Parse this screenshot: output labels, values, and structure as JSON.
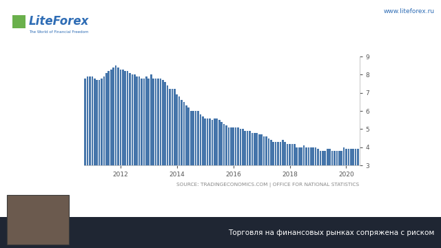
{
  "chart_data": {
    "type": "bar",
    "categories": [
      null,
      null,
      null,
      null,
      null,
      null,
      null,
      null,
      null,
      null,
      null,
      null,
      null,
      null,
      null,
      "2012",
      null,
      null,
      null,
      null,
      null,
      null,
      null,
      null,
      null,
      null,
      null,
      null,
      null,
      null,
      null,
      null,
      null,
      null,
      null,
      null,
      null,
      null,
      null,
      "2014",
      null,
      null,
      null,
      null,
      null,
      null,
      null,
      null,
      null,
      null,
      null,
      null,
      null,
      null,
      null,
      null,
      null,
      null,
      null,
      null,
      null,
      null,
      null,
      "2016",
      null,
      null,
      null,
      null,
      null,
      null,
      null,
      null,
      null,
      null,
      null,
      null,
      null,
      null,
      null,
      null,
      null,
      null,
      null,
      null,
      null,
      null,
      null,
      "2018",
      null,
      null,
      null,
      null,
      null,
      null,
      null,
      null,
      null,
      null,
      null,
      null,
      null,
      null,
      null,
      null,
      null,
      null,
      null,
      null,
      null,
      null,
      null,
      "2020",
      null,
      null,
      null,
      null,
      null
    ],
    "values": [
      7.8,
      7.9,
      7.9,
      7.9,
      7.8,
      7.7,
      7.7,
      7.8,
      7.9,
      8.1,
      8.2,
      8.3,
      8.4,
      8.5,
      8.4,
      8.3,
      8.3,
      8.2,
      8.2,
      8.1,
      8.0,
      8.0,
      7.9,
      7.9,
      7.8,
      7.8,
      7.9,
      7.8,
      8.0,
      7.8,
      7.8,
      7.8,
      7.8,
      7.7,
      7.6,
      7.4,
      7.2,
      7.2,
      7.2,
      6.9,
      6.8,
      6.6,
      6.5,
      6.3,
      6.2,
      6.0,
      6.0,
      6.0,
      6.0,
      5.8,
      5.7,
      5.6,
      5.6,
      5.6,
      5.5,
      5.6,
      5.6,
      5.5,
      5.4,
      5.3,
      5.2,
      5.1,
      5.1,
      5.1,
      5.1,
      5.1,
      5.0,
      5.0,
      4.9,
      4.9,
      4.9,
      4.8,
      4.8,
      4.8,
      4.7,
      4.7,
      4.6,
      4.6,
      4.5,
      4.4,
      4.3,
      4.3,
      4.3,
      4.3,
      4.4,
      4.3,
      4.2,
      4.2,
      4.2,
      4.2,
      4.0,
      4.0,
      4.0,
      4.1,
      4.0,
      4.0,
      4.0,
      4.0,
      4.0,
      3.9,
      3.8,
      3.8,
      3.8,
      3.9,
      3.9,
      3.8,
      3.8,
      3.8,
      3.8,
      3.8,
      4.0,
      3.9,
      3.9,
      3.9,
      3.9,
      3.9,
      3.9
    ],
    "color": "#4575aa",
    "ylim": [
      3,
      9
    ],
    "yticks": [
      3,
      4,
      5,
      6,
      7,
      8,
      9
    ],
    "grid": false,
    "annotations": [
      "SOURCE: TRADINGECONOMICS.COM | OFFICE FOR NATIONAL STATISTICS",
      "LiteForex",
      "The World of Financial Freedom",
      "www.liteforex.ru",
      "Торговля на финансовых рынках сопряжена с риском"
    ]
  }
}
